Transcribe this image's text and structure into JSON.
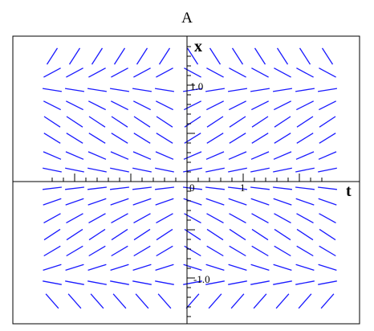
{
  "chart_data": {
    "type": "slope-field",
    "title": "A",
    "xlabel": "t",
    "ylabel": "x",
    "xlim": [
      -2.5,
      2.5
    ],
    "ylim": [
      -1.4,
      1.4
    ],
    "x_ticks": [
      {
        "value": 0,
        "label": "0"
      },
      {
        "value": 1,
        "label": "1"
      }
    ],
    "y_ticks": [
      {
        "value": 1.0,
        "label": "1.0"
      },
      {
        "value": -1.0,
        "label": "-1.0"
      }
    ],
    "grid": false,
    "segment_color": "#1a1aff",
    "field": {
      "t": [
        -2.4,
        -2.0,
        -1.6,
        -1.2,
        -0.8,
        -0.4,
        0.1,
        0.5,
        0.9,
        1.3,
        1.7,
        2.1,
        2.5
      ],
      "x": [
        -1.24,
        -1.05,
        -0.89,
        -0.72,
        -0.55,
        -0.38,
        -0.21,
        -0.07,
        0.12,
        0.27,
        0.45,
        0.62,
        0.79,
        0.95,
        1.13,
        1.3
      ],
      "slope_rule": "dx/dt = x(1 - x^2) for t > 0, reversed for t < 0"
    }
  }
}
